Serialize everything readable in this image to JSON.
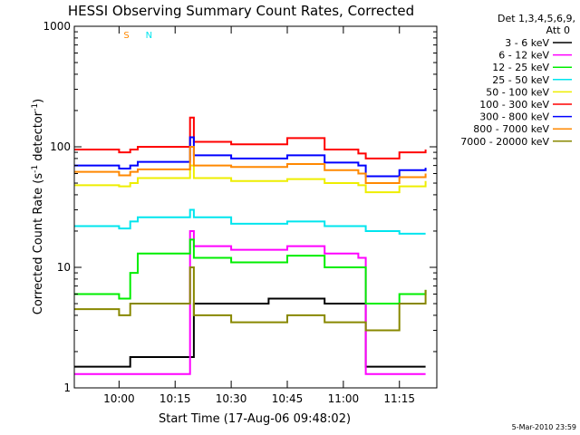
{
  "chart_data": {
    "type": "line",
    "title": "HESSI Observing Summary Count Rates, Corrected",
    "xlabel": "Start Time (17-Aug-06 09:48:02)",
    "ylabel_main": "Corrected Count Rate (s",
    "ylabel_sup1": "-1",
    "ylabel_mid": " detector",
    "ylabel_sup2": "-1",
    "ylabel_end": ")",
    "yscale": "log",
    "ylim": [
      1,
      1000
    ],
    "xlim": [
      "09:48:02",
      "11:25:00"
    ],
    "x_ticks": [
      "10:00",
      "10:15",
      "10:30",
      "10:45",
      "11:00",
      "11:15"
    ],
    "y_ticks": [
      "1",
      "10",
      "100",
      "1000"
    ],
    "grid": false,
    "legend_header": [
      "Det 1,3,4,5,6,9,",
      "Att 0"
    ],
    "legend_placement": "right, outside plot",
    "timestamp": "5-Mar-2010 23:59",
    "annotations": [
      {
        "text": "S",
        "color": "#ff8800",
        "x": "10:02"
      },
      {
        "text": "N",
        "color": "#00e5ee",
        "x": "10:08"
      }
    ],
    "series": [
      {
        "name": "3 - 6 keV",
        "color": "#000000",
        "x": [
          "09:48",
          "09:55",
          "10:03",
          "10:05",
          "10:20",
          "10:30",
          "10:40",
          "10:45",
          "10:55",
          "11:04",
          "11:06",
          "11:12",
          "11:22"
        ],
        "y": [
          1.5,
          1.5,
          1.8,
          1.8,
          5,
          5,
          5.5,
          5.5,
          5,
          5,
          1.5,
          1.5,
          1.5
        ]
      },
      {
        "name": "6 - 12 keV",
        "color": "#ff00ff",
        "x": [
          "09:48",
          "09:55",
          "10:03",
          "10:05",
          "10:19",
          "10:20",
          "10:30",
          "10:45",
          "10:55",
          "11:04",
          "11:06",
          "11:12",
          "11:22"
        ],
        "y": [
          1.3,
          1.3,
          1.3,
          1.3,
          20,
          15,
          14,
          15,
          13,
          12,
          1.3,
          1.3,
          1.3
        ]
      },
      {
        "name": "12 - 25 keV",
        "color": "#00ee00",
        "x": [
          "09:48",
          "10:00",
          "10:03",
          "10:05",
          "10:19",
          "10:20",
          "10:30",
          "10:45",
          "10:55",
          "11:04",
          "11:06",
          "11:15",
          "11:22"
        ],
        "y": [
          6,
          5.5,
          9,
          13,
          17,
          12,
          11,
          12.5,
          10,
          10,
          5,
          6,
          6.5
        ]
      },
      {
        "name": "25 - 50 keV",
        "color": "#00e5ee",
        "x": [
          "09:48",
          "10:00",
          "10:03",
          "10:05",
          "10:19",
          "10:20",
          "10:30",
          "10:45",
          "10:55",
          "11:04",
          "11:06",
          "11:15",
          "11:22"
        ],
        "y": [
          22,
          21,
          24,
          26,
          30,
          26,
          23,
          24,
          22,
          22,
          20,
          19,
          19
        ]
      },
      {
        "name": "50 - 100 keV",
        "color": "#eeee00",
        "x": [
          "09:48",
          "10:00",
          "10:03",
          "10:05",
          "10:19",
          "10:20",
          "10:30",
          "10:45",
          "10:55",
          "11:04",
          "11:06",
          "11:15",
          "11:22"
        ],
        "y": [
          48,
          47,
          50,
          55,
          70,
          55,
          52,
          54,
          50,
          48,
          42,
          47,
          52
        ]
      },
      {
        "name": "100 - 300 keV",
        "color": "#ff0000",
        "x": [
          "09:48",
          "10:00",
          "10:03",
          "10:05",
          "10:19",
          "10:20",
          "10:30",
          "10:45",
          "10:55",
          "11:04",
          "11:06",
          "11:15",
          "11:22"
        ],
        "y": [
          95,
          90,
          95,
          100,
          175,
          110,
          105,
          118,
          95,
          88,
          80,
          90,
          95
        ]
      },
      {
        "name": "300 - 800 keV",
        "color": "#0000ff",
        "x": [
          "09:48",
          "10:00",
          "10:03",
          "10:05",
          "10:19",
          "10:20",
          "10:30",
          "10:45",
          "10:55",
          "11:04",
          "11:06",
          "11:15",
          "11:22"
        ],
        "y": [
          70,
          66,
          70,
          75,
          120,
          85,
          80,
          85,
          74,
          70,
          57,
          64,
          67
        ]
      },
      {
        "name": "800 - 7000 keV",
        "color": "#ff8800",
        "x": [
          "09:48",
          "10:00",
          "10:03",
          "10:05",
          "10:19",
          "10:20",
          "10:30",
          "10:45",
          "10:55",
          "11:04",
          "11:06",
          "11:15",
          "11:22"
        ],
        "y": [
          62,
          58,
          62,
          65,
          100,
          70,
          68,
          72,
          64,
          60,
          50,
          56,
          60
        ]
      },
      {
        "name": "7000 - 20000 keV",
        "color": "#888800",
        "x": [
          "09:48",
          "10:00",
          "10:03",
          "10:05",
          "10:19",
          "10:20",
          "10:30",
          "10:45",
          "10:55",
          "11:04",
          "11:06",
          "11:15",
          "11:22"
        ],
        "y": [
          4.5,
          4,
          5,
          5,
          10,
          4,
          3.5,
          4,
          3.5,
          3.5,
          3,
          5,
          6.5
        ]
      }
    ]
  }
}
